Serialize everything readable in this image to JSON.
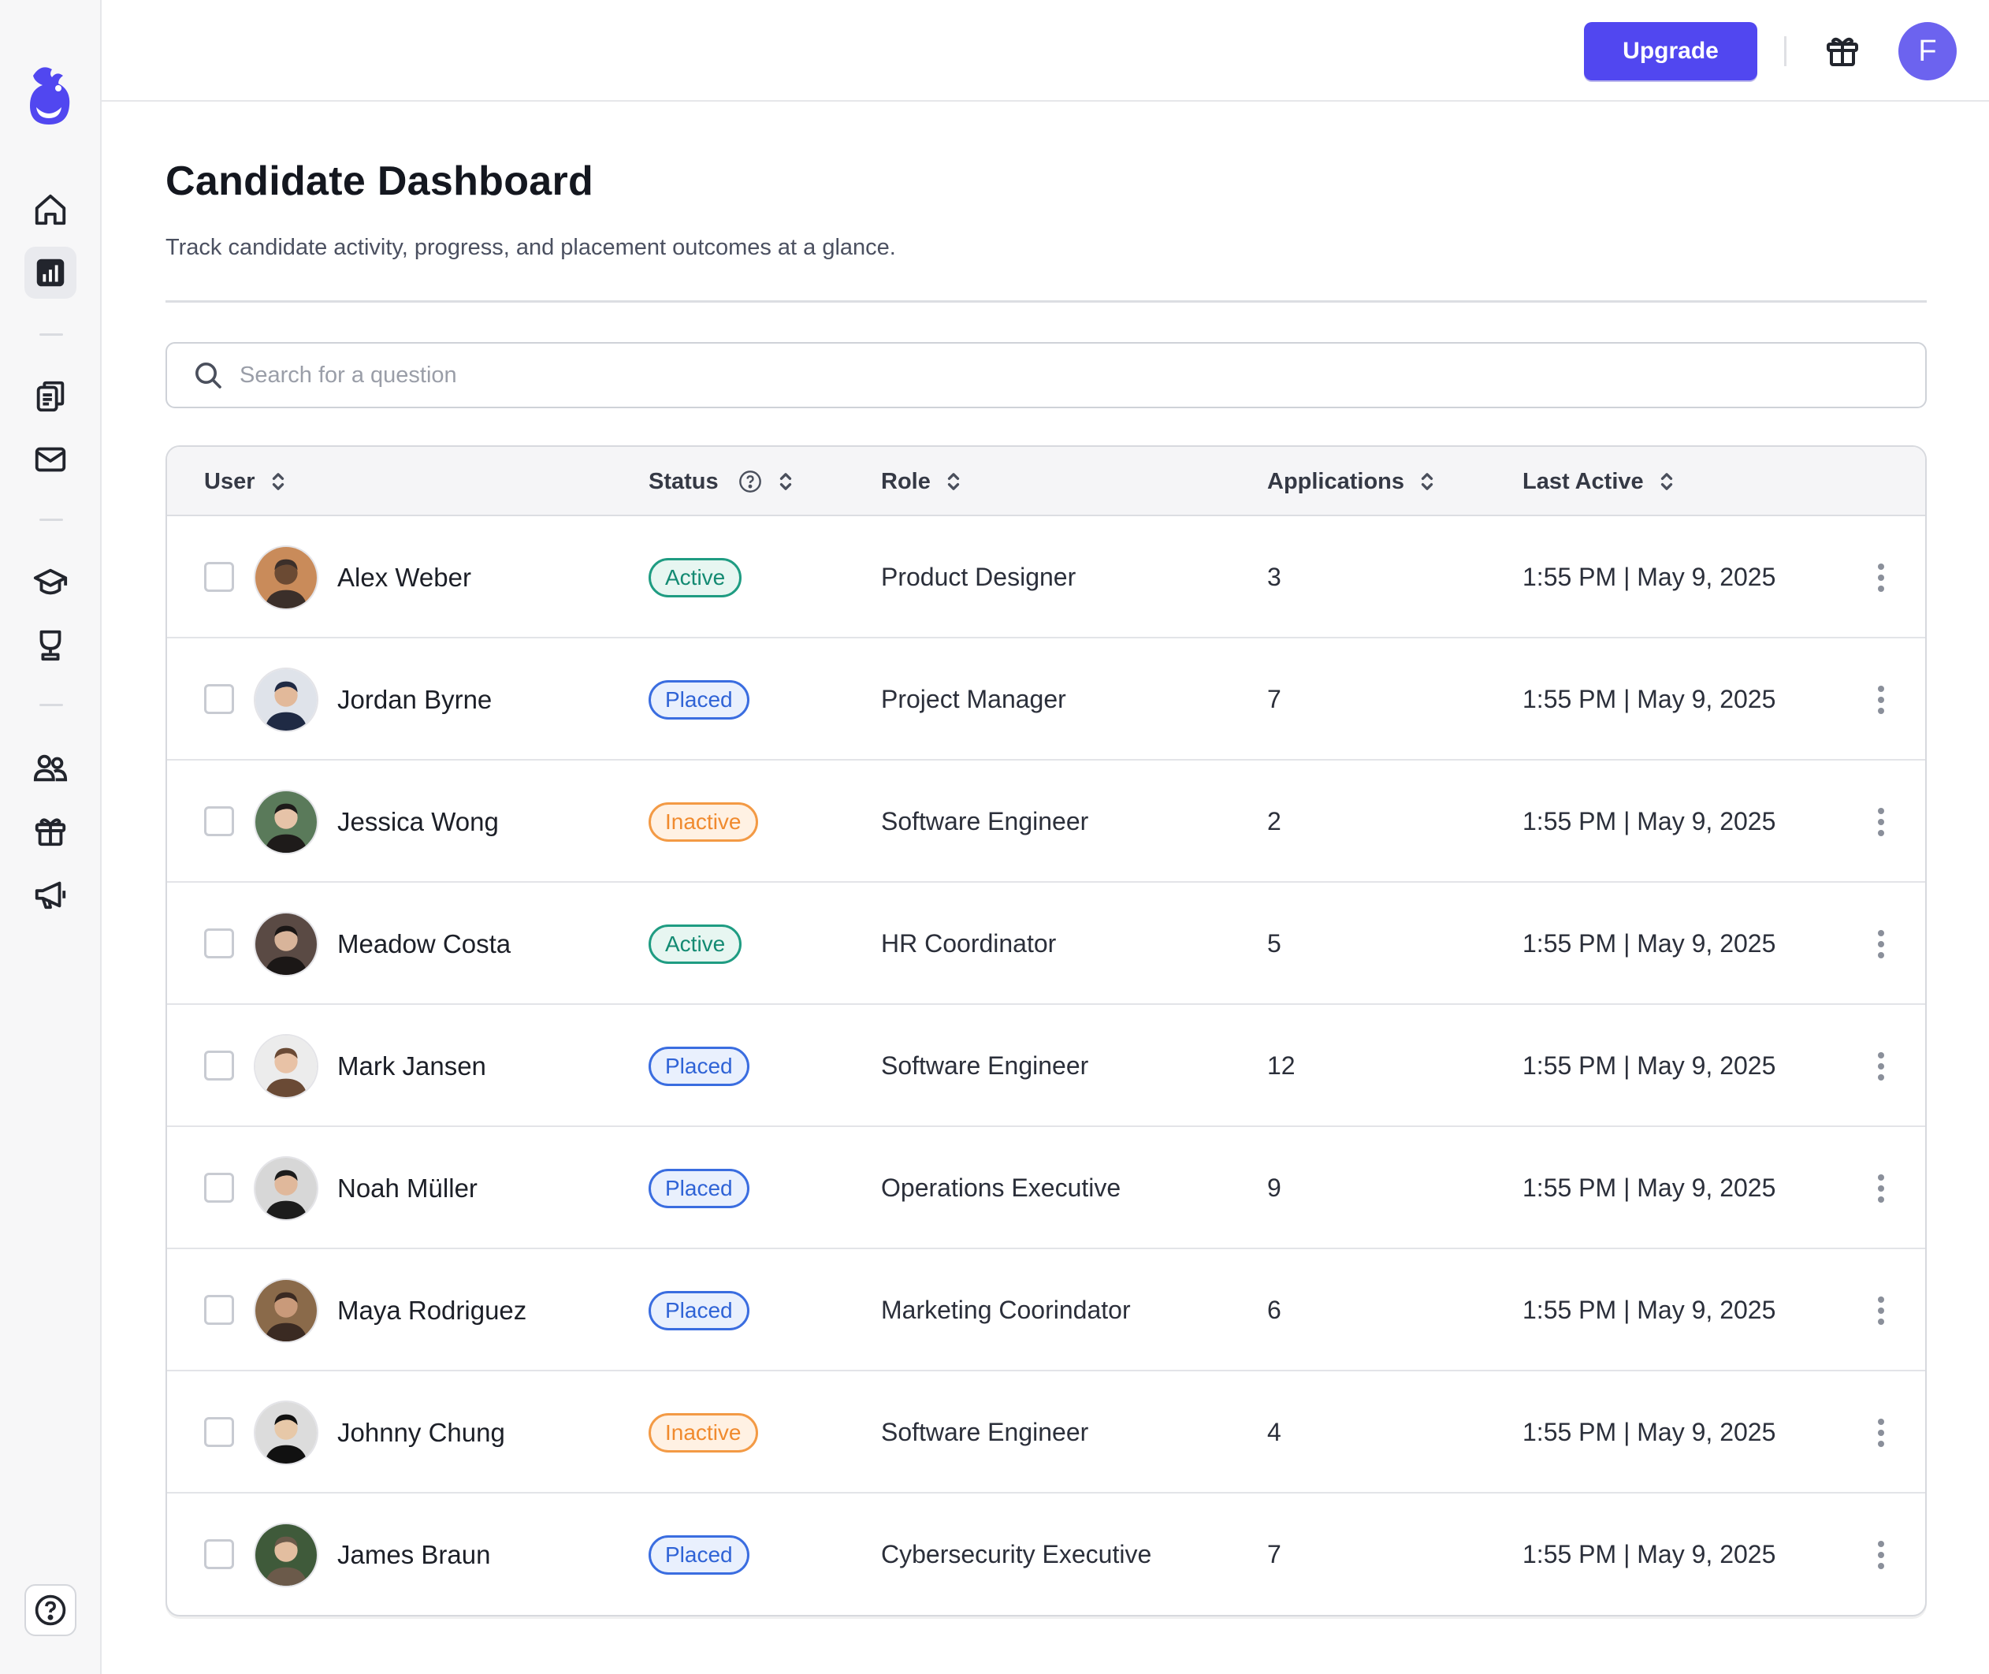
{
  "topbar": {
    "upgrade_label": "Upgrade",
    "avatar_initial": "F"
  },
  "sidebar": {
    "items": [
      {
        "name": "home-icon",
        "active": false
      },
      {
        "name": "analytics-icon",
        "active": true
      },
      {
        "name": "documents-icon",
        "active": false
      },
      {
        "name": "mail-icon",
        "active": false
      },
      {
        "name": "education-icon",
        "active": false
      },
      {
        "name": "trophy-icon",
        "active": false
      },
      {
        "name": "users-icon",
        "active": false
      },
      {
        "name": "gift-icon",
        "active": false
      },
      {
        "name": "megaphone-icon",
        "active": false
      }
    ],
    "help_icon": "help-icon"
  },
  "page": {
    "title": "Candidate Dashboard",
    "subtitle": "Track candidate activity, progress, and placement outcomes at a glance."
  },
  "search": {
    "placeholder": "Search for a question",
    "value": ""
  },
  "table": {
    "columns": [
      "User",
      "Status",
      "Role",
      "Applications",
      "Last Active"
    ],
    "rows": [
      {
        "name": "Alex Weber",
        "status": "Active",
        "role": "Product Designer",
        "applications": "3",
        "last_active": "1:55 PM | May 9, 2025"
      },
      {
        "name": "Jordan Byrne",
        "status": "Placed",
        "role": "Project Manager",
        "applications": "7",
        "last_active": "1:55 PM | May 9, 2025"
      },
      {
        "name": "Jessica Wong",
        "status": "Inactive",
        "role": "Software Engineer",
        "applications": "2",
        "last_active": "1:55 PM | May 9, 2025"
      },
      {
        "name": "Meadow Costa",
        "status": "Active",
        "role": "HR Coordinator",
        "applications": "5",
        "last_active": "1:55 PM | May 9, 2025"
      },
      {
        "name": "Mark Jansen",
        "status": "Placed",
        "role": "Software Engineer",
        "applications": "12",
        "last_active": "1:55 PM | May 9, 2025"
      },
      {
        "name": "Noah Müller",
        "status": "Placed",
        "role": "Operations Executive",
        "applications": "9",
        "last_active": "1:55 PM | May 9, 2025"
      },
      {
        "name": "Maya Rodriguez",
        "status": "Placed",
        "role": "Marketing Coorindator",
        "applications": "6",
        "last_active": "1:55 PM | May 9, 2025"
      },
      {
        "name": "Johnny Chung",
        "status": "Inactive",
        "role": "Software Engineer",
        "applications": "4",
        "last_active": "1:55 PM | May 9, 2025"
      },
      {
        "name": "James Braun",
        "status": "Placed",
        "role": "Cybersecurity Executive",
        "applications": "7",
        "last_active": "1:55 PM | May 9, 2025"
      }
    ]
  },
  "colors": {
    "accent": "#5147f0",
    "active": "#1f9c82",
    "placed": "#3a6de0",
    "inactive": "#f39a45"
  }
}
